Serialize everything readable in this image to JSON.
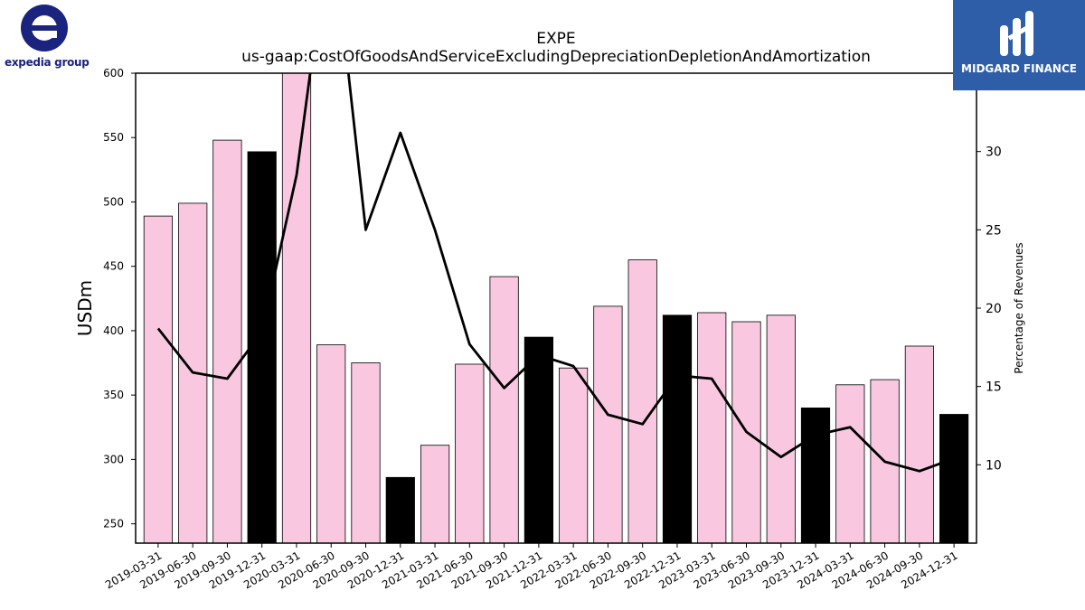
{
  "logos": {
    "left_text": "expedia group",
    "right_text": "MIDGARD FINANCE"
  },
  "colors": {
    "bar_fill": "#f9c8e0",
    "bar_highlight": "#000000",
    "line": "#000000",
    "logo_left": "#1a237e",
    "logo_right_bg": "#2f5ea8"
  },
  "chart_data": {
    "type": "bar",
    "title": "EXPE",
    "subtitle": "us-gaap:CostOfGoodsAndServiceExcludingDepreciationDepletionAndAmortization",
    "ylabel": "USDm",
    "y2label": "Percentage of Revenues",
    "ylim": [
      235,
      600
    ],
    "y2lim": [
      5,
      35
    ],
    "yticks": [
      250,
      300,
      350,
      400,
      450,
      500,
      550,
      600
    ],
    "y2ticks": [
      10,
      15,
      20,
      25,
      30
    ],
    "categories": [
      "2019-03-31",
      "2019-06-30",
      "2019-09-30",
      "2019-12-31",
      "2020-03-31",
      "2020-06-30",
      "2020-09-30",
      "2020-12-31",
      "2021-03-31",
      "2021-06-30",
      "2021-09-30",
      "2021-12-31",
      "2022-03-31",
      "2022-06-30",
      "2022-09-30",
      "2022-12-31",
      "2023-03-31",
      "2023-06-30",
      "2023-09-30",
      "2023-12-31",
      "2024-03-31",
      "2024-06-30",
      "2024-09-30",
      "2024-12-31"
    ],
    "values": [
      489,
      499,
      548,
      539,
      600,
      389,
      375,
      286,
      311,
      374,
      442,
      395,
      371,
      419,
      455,
      412,
      414,
      407,
      412,
      340,
      358,
      362,
      388,
      335
    ],
    "highlight": [
      false,
      false,
      false,
      true,
      false,
      false,
      false,
      true,
      false,
      false,
      false,
      true,
      false,
      false,
      false,
      true,
      false,
      false,
      false,
      true,
      false,
      false,
      false,
      true
    ],
    "percent_series": [
      18.7,
      15.9,
      15.5,
      18.5,
      28.5,
      45.0,
      25.0,
      31.2,
      25.0,
      17.7,
      14.9,
      17.0,
      16.3,
      13.2,
      12.6,
      15.7,
      15.5,
      12.1,
      10.5,
      11.9,
      12.4,
      10.2,
      9.6,
      10.4
    ],
    "grid": false
  }
}
